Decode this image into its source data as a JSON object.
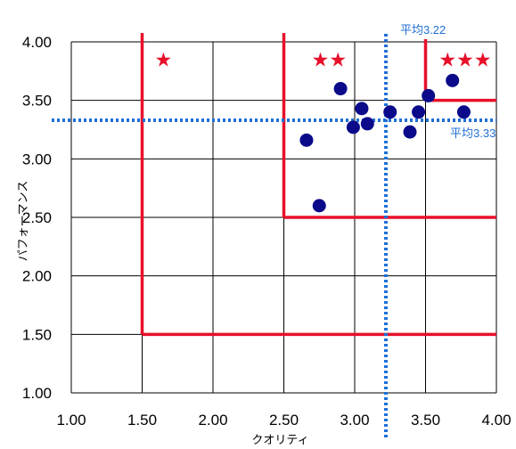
{
  "chart_data": {
    "type": "scatter",
    "title": "",
    "xlabel": "クオリティ",
    "ylabel": "パフォーマンス",
    "xlim": [
      1.0,
      4.0
    ],
    "ylim": [
      1.0,
      4.0
    ],
    "x_ticks": [
      "1.00",
      "1.50",
      "2.00",
      "2.50",
      "3.00",
      "3.50",
      "4.00"
    ],
    "y_ticks": [
      "1.00",
      "1.50",
      "2.00",
      "2.50",
      "3.00",
      "3.50",
      "4.00"
    ],
    "grid": true,
    "points": [
      {
        "x": 2.66,
        "y": 3.16
      },
      {
        "x": 2.75,
        "y": 2.6
      },
      {
        "x": 2.9,
        "y": 3.6
      },
      {
        "x": 2.99,
        "y": 3.27
      },
      {
        "x": 3.05,
        "y": 3.43
      },
      {
        "x": 3.09,
        "y": 3.3
      },
      {
        "x": 3.25,
        "y": 3.4
      },
      {
        "x": 3.39,
        "y": 3.23
      },
      {
        "x": 3.45,
        "y": 3.4
      },
      {
        "x": 3.52,
        "y": 3.54
      },
      {
        "x": 3.69,
        "y": 3.67
      },
      {
        "x": 3.77,
        "y": 3.4
      }
    ],
    "point_color": "#0a0a8a",
    "averages": {
      "x": {
        "value": 3.22,
        "label": "平均3.22"
      },
      "y": {
        "value": 3.33,
        "label": "平均3.33"
      }
    },
    "average_line_color": "#1f6fd6",
    "zones": [
      {
        "x": 1.5,
        "y": 1.5,
        "stars": "★"
      },
      {
        "x": 2.5,
        "y": 2.5,
        "stars": "★★"
      },
      {
        "x": 3.5,
        "y": 3.5,
        "stars": "★★★"
      }
    ],
    "zone_color": "#e8102a"
  }
}
